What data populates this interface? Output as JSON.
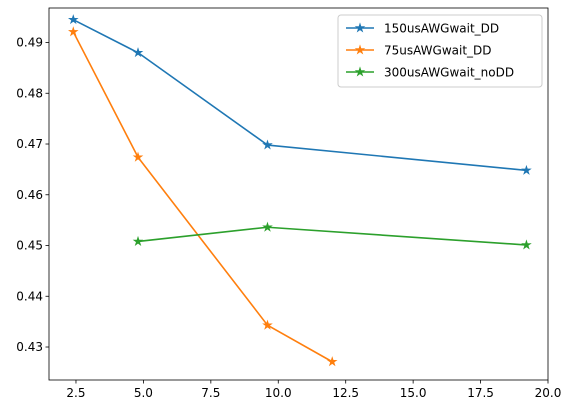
{
  "chart_data": {
    "type": "line",
    "title": "",
    "xlabel": "",
    "ylabel": "",
    "xlim": [
      1.5,
      20.0
    ],
    "ylim": [
      0.4235,
      0.4968
    ],
    "xticks": [
      2.5,
      5.0,
      7.5,
      10.0,
      12.5,
      15.0,
      17.5,
      20.0
    ],
    "xtick_labels": [
      "2.5",
      "5.0",
      "7.5",
      "10.0",
      "12.5",
      "15.0",
      "17.5",
      "20.0"
    ],
    "yticks": [
      0.43,
      0.44,
      0.45,
      0.46,
      0.47,
      0.48,
      0.49
    ],
    "ytick_labels": [
      "0.43",
      "0.44",
      "0.45",
      "0.46",
      "0.47",
      "0.48",
      "0.49"
    ],
    "grid": false,
    "legend_position": "top-right",
    "marker": "star",
    "series": [
      {
        "name": "150usAWGwait_DD",
        "color": "#1f77b4",
        "x": [
          2.4,
          4.8,
          9.6,
          19.2
        ],
        "y": [
          0.4945,
          0.488,
          0.4698,
          0.4648
        ]
      },
      {
        "name": "75usAWGwait_DD",
        "color": "#ff7f0e",
        "x": [
          2.4,
          4.8,
          9.6,
          12.0
        ],
        "y": [
          0.4921,
          0.4674,
          0.4343,
          0.4271
        ]
      },
      {
        "name": "300usAWGwait_noDD",
        "color": "#2ca02c",
        "x": [
          4.8,
          9.6,
          19.2
        ],
        "y": [
          0.4508,
          0.4536,
          0.4501
        ]
      }
    ]
  }
}
